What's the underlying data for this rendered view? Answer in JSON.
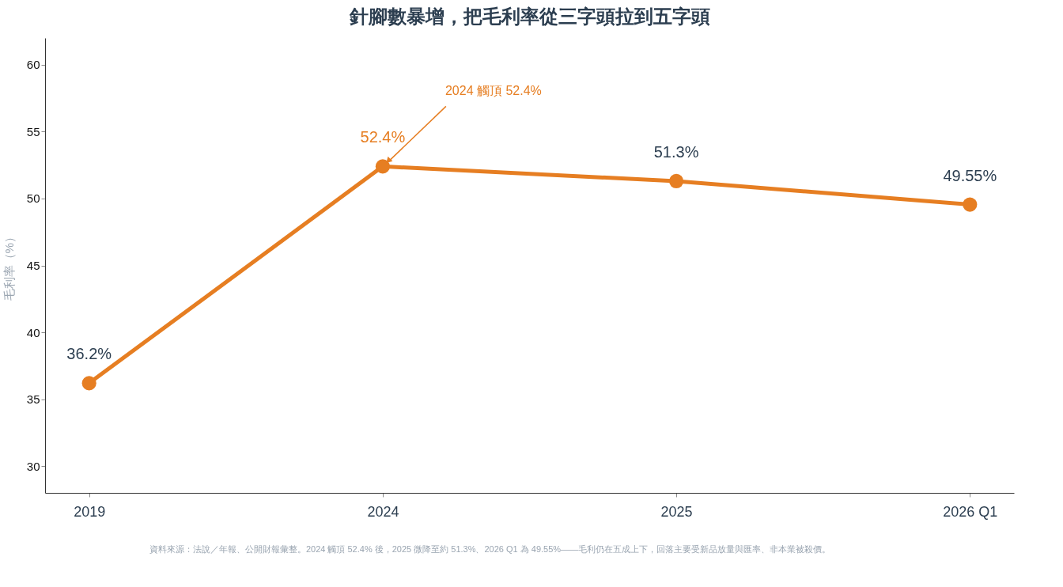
{
  "chart_data": {
    "type": "line",
    "title": "針腳數暴增，把毛利率從三字頭拉到五字頭",
    "ylabel": "毛利率（%）",
    "categories": [
      "2019",
      "2024",
      "2025",
      "2026 Q1"
    ],
    "series": [
      {
        "color": "#e67e22",
        "values": [
          36.2,
          52.4,
          51.3,
          49.55
        ],
        "value_labels": [
          "36.2%",
          "52.4%",
          "51.3%",
          "49.55%"
        ]
      }
    ],
    "ylim": [
      28,
      62
    ],
    "yticks": [
      30,
      35,
      40,
      45,
      50,
      55,
      60
    ],
    "grid": false,
    "marker": "circle",
    "line_style": "solid",
    "annotations": [
      {
        "text": "2024 觸頂 52.4%",
        "x": "2024",
        "y": 52.4
      },
      "資料來源：法說／年報、公開財報彙整。2024 觸頂 52.4% 後，2025 微降至約 51.3%、2026 Q1 為 49.55%——毛利仍在五成上下，回落主要受新品放量與匯率、非本業被殺價。"
    ]
  }
}
